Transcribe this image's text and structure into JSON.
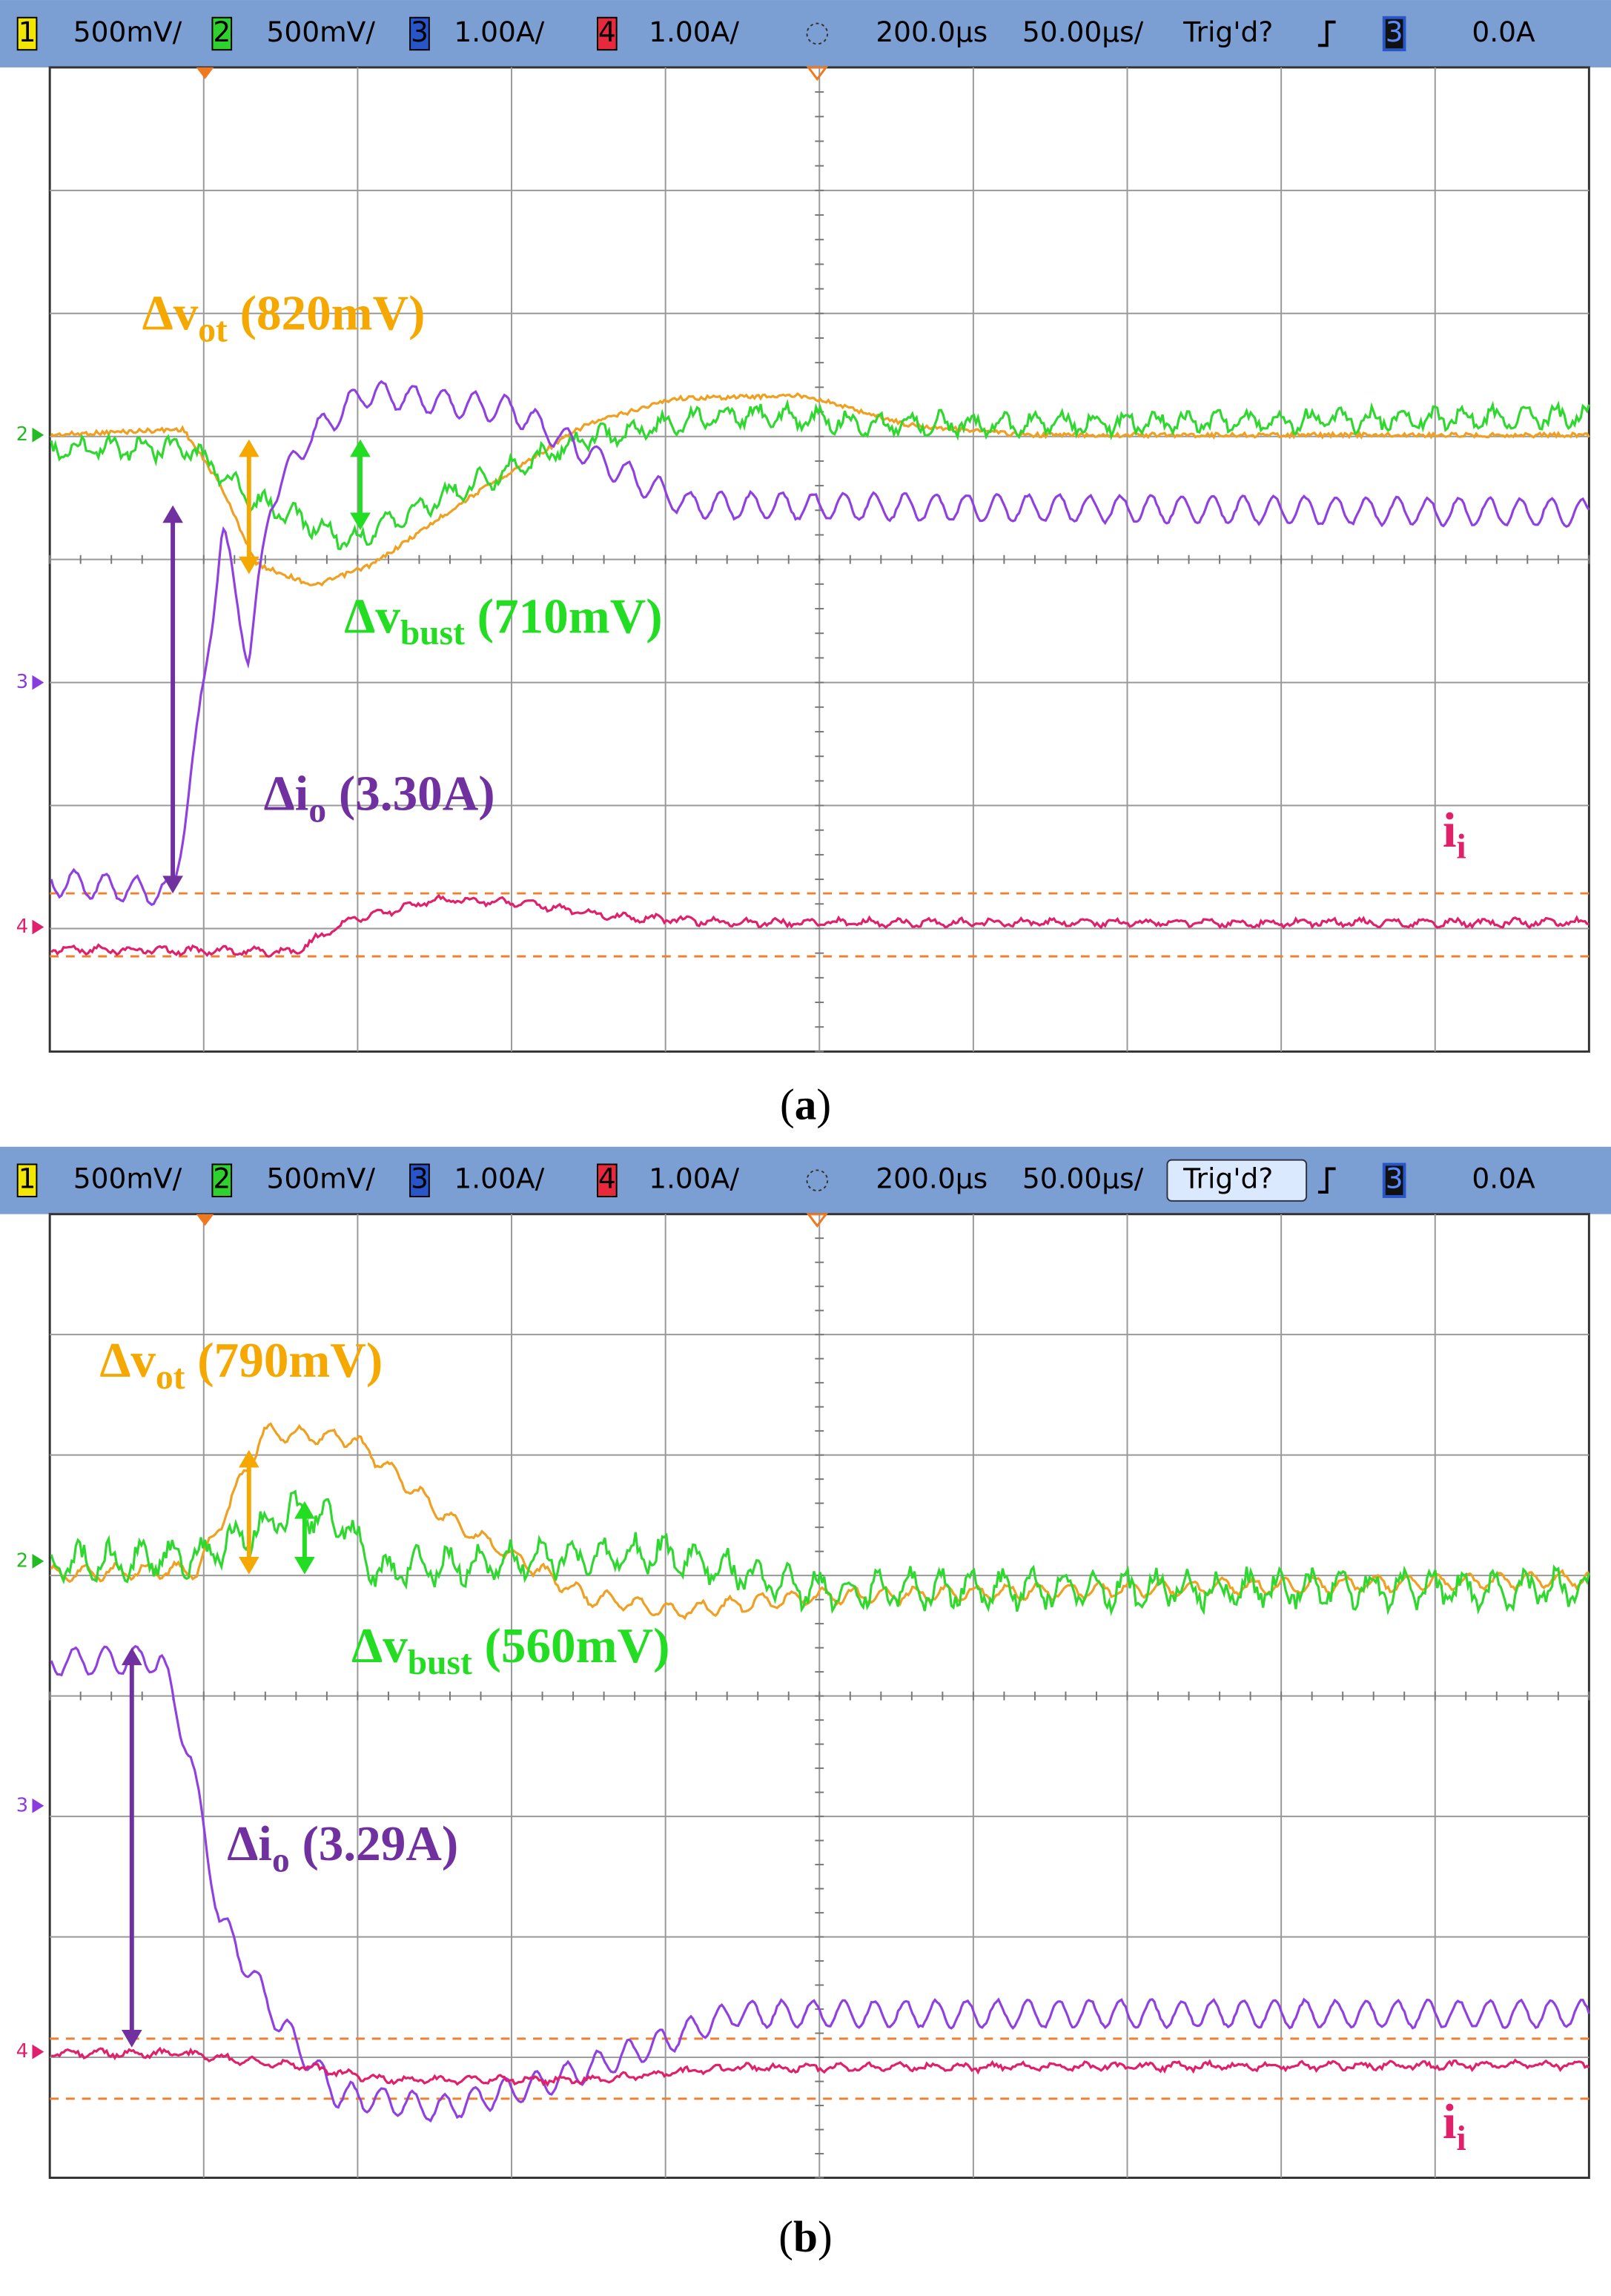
{
  "panels": [
    {
      "status_bar": {
        "channels": [
          {
            "number": "1",
            "scale": "500mV/"
          },
          {
            "number": "2",
            "scale": "500mV/"
          },
          {
            "number": "3",
            "scale": "1.00A/"
          },
          {
            "number": "4",
            "scale": "1.00A/"
          }
        ],
        "timebase": {
          "delay": "200.0µs",
          "scale": "50.00µs/"
        },
        "trigger": {
          "status": "Trig'd?",
          "channel": "3",
          "level": "0.0A"
        }
      },
      "channel_markers": [
        "2",
        "3",
        "4"
      ],
      "annotations": [
        {
          "main": "Δv",
          "sub": "ot",
          "rest": " (820mV)"
        },
        {
          "main": "Δv",
          "sub": "bust",
          "rest": " (710mV)"
        },
        {
          "main": "Δi",
          "sub": "o",
          "rest": " (3.30A)"
        },
        {
          "main": "i",
          "sub": "i",
          "rest": ""
        }
      ],
      "caption": [
        "(",
        "a",
        ")"
      ]
    },
    {
      "status_bar": {
        "channels": [
          {
            "number": "1",
            "scale": "500mV/"
          },
          {
            "number": "2",
            "scale": "500mV/"
          },
          {
            "number": "3",
            "scale": "1.00A/"
          },
          {
            "number": "4",
            "scale": "1.00A/"
          }
        ],
        "timebase": {
          "delay": "200.0µs",
          "scale": "50.00µs/"
        },
        "trigger": {
          "status": "Trig'd?",
          "channel": "3",
          "level": "0.0A"
        }
      },
      "channel_markers": [
        "2",
        "3",
        "4"
      ],
      "annotations": [
        {
          "main": "Δv",
          "sub": "ot",
          "rest": " (790mV)"
        },
        {
          "main": "Δv",
          "sub": "bust",
          "rest": " (560mV)"
        },
        {
          "main": "Δi",
          "sub": "o",
          "rest": " (3.29A)"
        },
        {
          "main": "i",
          "sub": "i",
          "rest": ""
        }
      ],
      "caption": [
        "(",
        "b",
        ")"
      ]
    }
  ]
}
